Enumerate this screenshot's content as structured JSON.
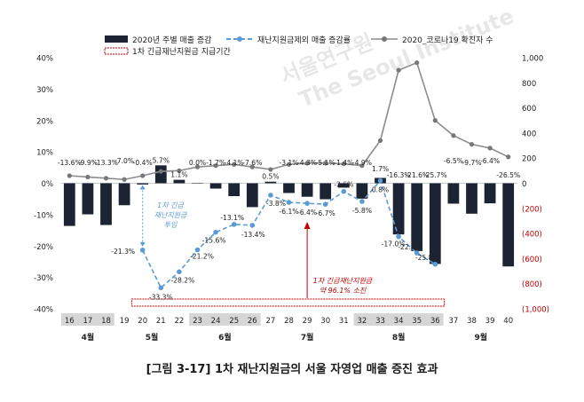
{
  "chart_data": {
    "type": "bar+line",
    "x": [
      16,
      17,
      18,
      19,
      20,
      21,
      22,
      23,
      24,
      25,
      26,
      27,
      28,
      29,
      30,
      31,
      32,
      33,
      34,
      35,
      36,
      37,
      38,
      39,
      40
    ],
    "x_labels": [
      "16",
      "17",
      "18",
      "19",
      "20",
      "21",
      "22",
      "23",
      "24",
      "25",
      "26",
      "27",
      "28",
      "29",
      "30",
      "31",
      "32",
      "33",
      "34",
      "35",
      "36",
      "37",
      "38",
      "39",
      "40"
    ],
    "months": [
      {
        "label": "4월",
        "from": 16,
        "to": 18
      },
      {
        "label": "5월",
        "from": 19,
        "to": 22
      },
      {
        "label": "6월",
        "from": 23,
        "to": 26
      },
      {
        "label": "7월",
        "from": 27,
        "to": 31
      },
      {
        "label": "8월",
        "from": 32,
        "to": 36
      },
      {
        "label": "9월",
        "from": 37,
        "to": 40
      }
    ],
    "shaded_weeks": [
      [
        16,
        18
      ],
      [
        23,
        26
      ],
      [
        32,
        36
      ]
    ],
    "left_axis": {
      "ylim": [
        -40,
        40
      ],
      "ticks": [
        -40,
        -30,
        -20,
        -10,
        0,
        10,
        20,
        30,
        40
      ],
      "tick_labels": [
        "-40%",
        "-30%",
        "-20%",
        "-10%",
        "0%",
        "10%",
        "20%",
        "30%",
        "40%"
      ]
    },
    "right_axis": {
      "ylim": [
        -1000,
        1000
      ],
      "ticks": [
        1000,
        800,
        600,
        400,
        200,
        0,
        -200,
        -400,
        -600,
        -800,
        -1000
      ],
      "tick_labels": [
        "1,000",
        "800",
        "600",
        "400",
        "200",
        "0",
        "(200)",
        "(400)",
        "(600)",
        "(800)",
        "(1,000)"
      ],
      "negative_color": "#c00000"
    },
    "legend": {
      "placement": "top",
      "items": [
        "2020년 주별 매출 증감",
        "재난지원금제외 매출 증감률",
        "2020_코로나19 확진자 수",
        "1차 긴급재난지원금 지급기간"
      ]
    },
    "series": [
      {
        "name": "2020년 주별 매출 증감",
        "kind": "bar",
        "axis": "left",
        "color": "#1c2433",
        "values": [
          -13.6,
          -9.9,
          -13.3,
          -7.0,
          -0.4,
          5.7,
          1.1,
          0.0,
          -1.7,
          -4.1,
          -7.6,
          0.5,
          -3.1,
          -4.3,
          -5.1,
          -1.4,
          -4.9,
          1.7,
          -16.3,
          -21.6,
          -25.7,
          -6.5,
          -9.7,
          -6.4,
          -26.5
        ],
        "labels": [
          "-13.6%",
          "-9.9%",
          "-13.3%",
          "-7.0%",
          "-0.4%",
          "5.7%",
          "1.1%",
          "0.0%",
          "-1.7%",
          "-4.1%",
          "-7.6%",
          "0.5%",
          "-3.1%",
          "-4.3%",
          "-5.1%",
          "-1.4%",
          "-4.9%",
          "1.7%",
          "-16.3%",
          "-21.6%",
          "-25.7%",
          "-6.5%",
          "-9.7%",
          "-6.4%",
          "-26.5%"
        ]
      },
      {
        "name": "재난지원금제외 매출 증감률",
        "kind": "line-dashed",
        "axis": "left",
        "color": "#5b9bd5",
        "x": [
          20,
          21,
          22,
          23,
          24,
          25,
          26,
          27,
          28,
          29,
          30,
          31,
          32,
          33,
          34,
          35,
          36
        ],
        "values": [
          -21.3,
          -33.3,
          -28.2,
          -21.2,
          -15.6,
          -13.1,
          -13.4,
          -3.8,
          -6.1,
          -6.4,
          -6.7,
          -2.6,
          -5.8,
          0.8,
          -17.0,
          -22.2,
          -25.8
        ],
        "labels": [
          "-21.3%",
          "-33.3%",
          "-28.2%",
          "-21.2%",
          "-15.6%",
          "-13.1%",
          "-13.4%",
          "-3.8%",
          "-6.1%",
          "-6.4%",
          "-6.7%",
          "-2.6%",
          "-5.8%",
          "0.8%",
          "-17.0%",
          "-22.2%",
          "-25.8%"
        ]
      },
      {
        "name": "2020_코로나19 확진자 수",
        "kind": "line",
        "axis": "right",
        "color": "#8c8c8c",
        "values": [
          60,
          50,
          40,
          30,
          60,
          95,
          100,
          130,
          140,
          150,
          130,
          110,
          150,
          160,
          160,
          155,
          140,
          340,
          900,
          960,
          500,
          380,
          310,
          280,
          210
        ]
      }
    ],
    "annotations": [
      {
        "text": [
          "1차 긴급",
          "재난지원금",
          "투입"
        ],
        "color": "#5b9bd5"
      },
      {
        "text": [
          "1차 긴급재난지원금",
          "약 96.1% 소진"
        ],
        "color": "#c00000"
      }
    ],
    "watermark": {
      "lines": [
        "서울연구원",
        "The Seoul Institute"
      ]
    },
    "caption": "[그림 3-17] 1차 재난지원금의 서울 자영업 매출 증진 효과"
  }
}
